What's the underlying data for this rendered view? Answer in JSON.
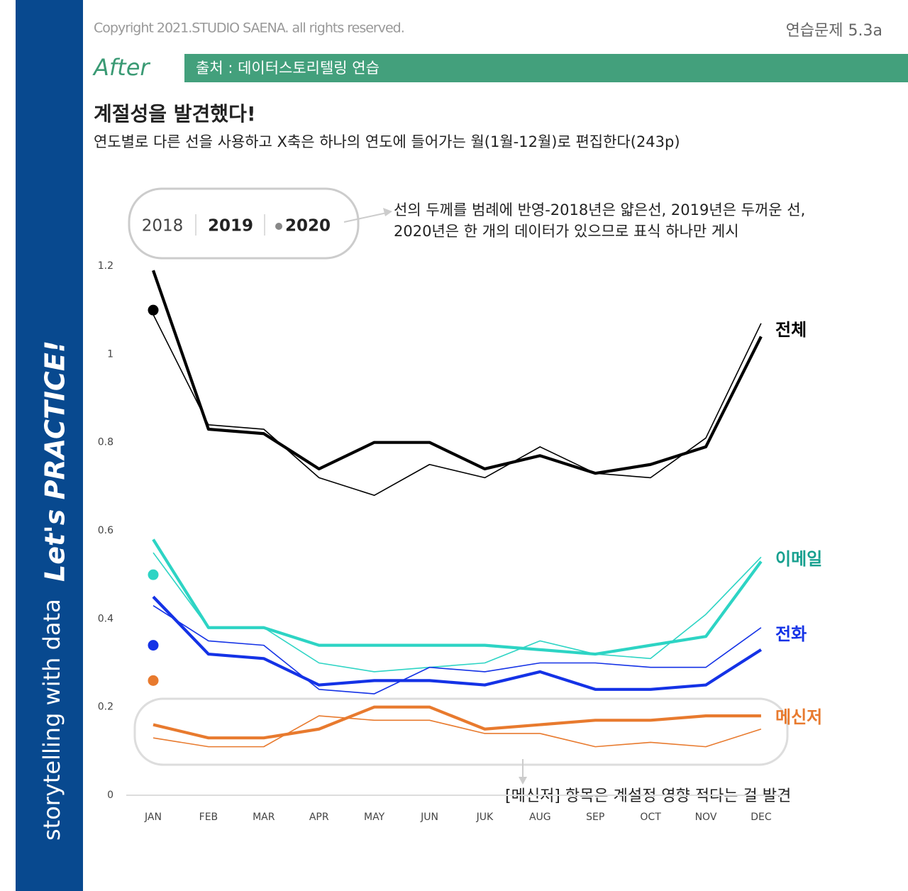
{
  "page": {
    "copyright": "Copyright 2021.STUDIO SAENA. all rights reserved.",
    "exercise": "연습문제 5.3a",
    "stage": "After",
    "source": "출처 : 데이터스토리텔링 연습",
    "sidebar_top": "storytelling with data",
    "sidebar_bottom": "Let's PRACTICE!"
  },
  "chart_data": {
    "type": "line",
    "title": "계절성을 발견했다!",
    "subtitle": "연도별로 다른 선을 사용하고 X축은 하나의 연도에 들어가는 월(1월-12월)로 편집한다(243p)",
    "annotations": [
      "선의 두께를 범례에 반영-2018년은 얇은선, 2019년은 두꺼운 선,",
      "2020년은 한 개의 데이터가 있으므로 표식 하나만 게시",
      "[메신저] 항목은 계설정 영향 적다는 걸 발견"
    ],
    "legend": [
      "2018",
      "2019",
      "2020"
    ],
    "categories": [
      "JAN",
      "FEB",
      "MAR",
      "APR",
      "MAY",
      "JUN",
      "JUK",
      "AUG",
      "SEP",
      "OCT",
      "NOV",
      "DEC"
    ],
    "ylim": [
      0,
      1.2
    ],
    "yticks": [
      0,
      0.2,
      0.4,
      0.6,
      0.8,
      1,
      1.2
    ],
    "series": [
      {
        "name": "전체",
        "color": "#000000",
        "label_color": "#000000",
        "values": [
          [
            1.09,
            0.84,
            0.83,
            0.72,
            0.68,
            0.75,
            0.72,
            0.79,
            0.73,
            0.72,
            0.81,
            1.07
          ],
          [
            1.19,
            0.83,
            0.82,
            0.74,
            0.8,
            0.8,
            0.74,
            0.77,
            0.73,
            0.75,
            0.79,
            1.04
          ],
          [
            1.1
          ]
        ]
      },
      {
        "name": "이메일",
        "color": "#2dd4c4",
        "label_color": "#17a08f",
        "values": [
          [
            0.55,
            0.38,
            0.38,
            0.3,
            0.28,
            0.29,
            0.3,
            0.35,
            0.32,
            0.31,
            0.41,
            0.54
          ],
          [
            0.58,
            0.38,
            0.38,
            0.34,
            0.34,
            0.34,
            0.34,
            0.33,
            0.32,
            0.34,
            0.36,
            0.53
          ],
          [
            0.5
          ]
        ]
      },
      {
        "name": "전화",
        "color": "#1432e6",
        "label_color": "#1432e6",
        "values": [
          [
            0.43,
            0.35,
            0.34,
            0.24,
            0.23,
            0.29,
            0.28,
            0.3,
            0.3,
            0.29,
            0.29,
            0.38
          ],
          [
            0.45,
            0.32,
            0.31,
            0.25,
            0.26,
            0.26,
            0.25,
            0.28,
            0.24,
            0.24,
            0.25,
            0.33
          ],
          [
            0.34
          ]
        ]
      },
      {
        "name": "메신저",
        "color": "#e87a2e",
        "label_color": "#e87a2e",
        "values": [
          [
            0.13,
            0.11,
            0.11,
            0.18,
            0.17,
            0.17,
            0.14,
            0.14,
            0.11,
            0.12,
            0.11,
            0.15
          ],
          [
            0.16,
            0.13,
            0.13,
            0.15,
            0.2,
            0.2,
            0.15,
            0.16,
            0.17,
            0.17,
            0.18,
            0.18
          ],
          [
            0.26
          ]
        ]
      }
    ]
  }
}
